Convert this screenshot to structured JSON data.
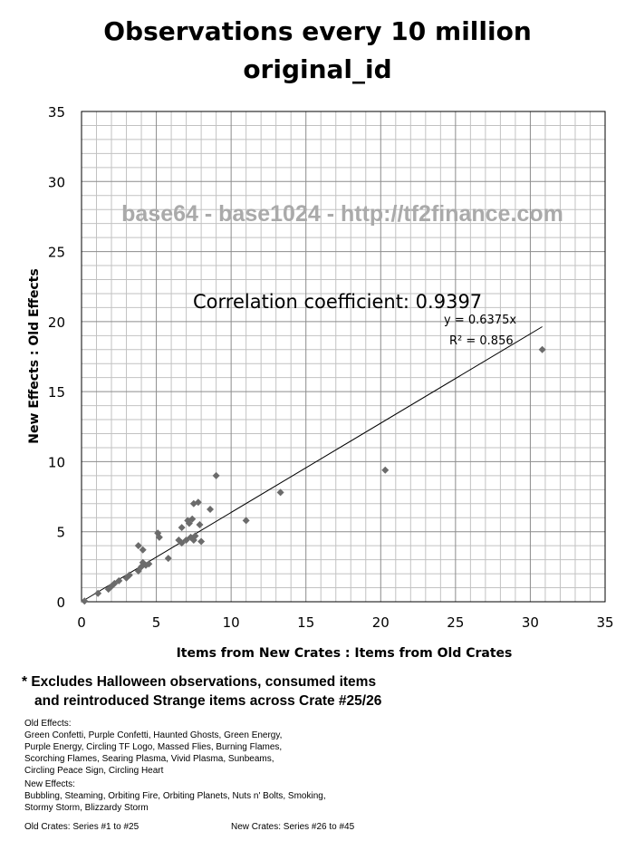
{
  "title_line1": "Observations every 10 million",
  "title_line2": "original_id",
  "chart_data": {
    "type": "scatter",
    "xlabel": "Items from New Crates : Items from Old Crates",
    "ylabel": "New Effects : Old Effects",
    "xlim": [
      0,
      35
    ],
    "ylim": [
      0,
      35
    ],
    "xticks": [
      "0",
      "5",
      "10",
      "15",
      "20",
      "25",
      "30",
      "35"
    ],
    "yticks": [
      "0",
      "5",
      "10",
      "15",
      "20",
      "25",
      "30",
      "35"
    ],
    "grid": true,
    "watermark": "base64 - base1024 - http://tf2finance.com",
    "correlation_label": "Correlation coefficient: 0.9397",
    "trendline": {
      "slope": 0.6375,
      "equation": "y = 0.6375x",
      "r2": "R² = 0.856"
    },
    "marker_color": "#6b6b6b",
    "points": [
      {
        "x": 0.2,
        "y": 0.05
      },
      {
        "x": 1.1,
        "y": 0.6
      },
      {
        "x": 1.8,
        "y": 0.9
      },
      {
        "x": 2.0,
        "y": 1.1
      },
      {
        "x": 2.2,
        "y": 1.3
      },
      {
        "x": 2.5,
        "y": 1.5
      },
      {
        "x": 3.0,
        "y": 1.7
      },
      {
        "x": 3.2,
        "y": 1.9
      },
      {
        "x": 3.8,
        "y": 2.2
      },
      {
        "x": 4.0,
        "y": 2.5
      },
      {
        "x": 4.1,
        "y": 2.8
      },
      {
        "x": 4.3,
        "y": 2.6
      },
      {
        "x": 4.5,
        "y": 2.7
      },
      {
        "x": 3.8,
        "y": 4.0
      },
      {
        "x": 4.1,
        "y": 3.7
      },
      {
        "x": 5.1,
        "y": 4.9
      },
      {
        "x": 5.2,
        "y": 4.6
      },
      {
        "x": 5.8,
        "y": 3.1
      },
      {
        "x": 6.5,
        "y": 4.4
      },
      {
        "x": 6.7,
        "y": 4.2
      },
      {
        "x": 6.7,
        "y": 5.3
      },
      {
        "x": 7.0,
        "y": 4.4
      },
      {
        "x": 7.1,
        "y": 5.8
      },
      {
        "x": 7.2,
        "y": 5.6
      },
      {
        "x": 7.4,
        "y": 5.9
      },
      {
        "x": 7.3,
        "y": 4.6
      },
      {
        "x": 7.5,
        "y": 4.4
      },
      {
        "x": 7.6,
        "y": 4.7
      },
      {
        "x": 7.5,
        "y": 7.0
      },
      {
        "x": 7.8,
        "y": 7.1
      },
      {
        "x": 7.9,
        "y": 5.5
      },
      {
        "x": 8.0,
        "y": 4.3
      },
      {
        "x": 8.6,
        "y": 6.6
      },
      {
        "x": 9.0,
        "y": 9.0
      },
      {
        "x": 11.0,
        "y": 5.8
      },
      {
        "x": 13.3,
        "y": 7.8
      },
      {
        "x": 20.3,
        "y": 9.4
      },
      {
        "x": 30.8,
        "y": 18.0
      }
    ]
  },
  "footnote_line1": "* Excludes Halloween observations, consumed items",
  "footnote_line2": "and reintroduced Strange items across Crate #25/26",
  "old_effects_title": "Old Effects:",
  "old_effects_lines": [
    "Green Confetti, Purple Confetti, Haunted Ghosts, Green Energy,",
    "Purple Energy, Circling TF Logo, Massed Flies, Burning Flames,",
    "Scorching Flames, Searing Plasma, Vivid Plasma, Sunbeams,",
    "Circling Peace Sign, Circling Heart"
  ],
  "new_effects_title": "New Effects:",
  "new_effects_lines": [
    "Bubbling, Steaming, Orbiting Fire, Orbiting Planets, Nuts n' Bolts, Smoking,",
    "Stormy Storm, Blizzardy Storm"
  ],
  "old_crates": "Old Crates: Series #1 to #25",
  "new_crates": "New Crates: Series #26 to #45"
}
